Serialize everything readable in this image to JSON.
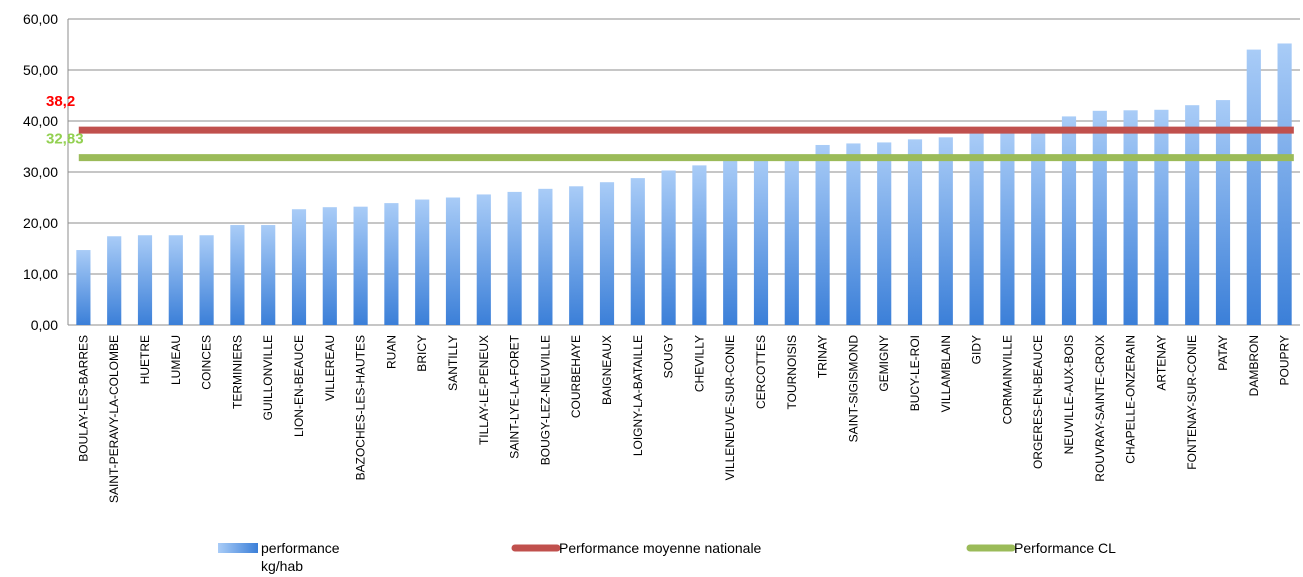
{
  "chart_data": {
    "type": "bar",
    "title": "",
    "xlabel": "",
    "ylabel": "",
    "ylim": [
      0,
      60
    ],
    "yticks": [
      "0,00",
      "10,00",
      "20,00",
      "30,00",
      "40,00",
      "50,00",
      "60,00"
    ],
    "grid": true,
    "legend_position": "bottom",
    "categories": [
      "BOULAY-LES-BARRES",
      "SAINT-PERAVY-LA-COLOMBE",
      "HUETRE",
      "LUMEAU",
      "COINCES",
      "TERMINIERS",
      "GUILLONVILLE",
      "LION-EN-BEAUCE",
      "VILLEREAU",
      "BAZOCHES-LES-HAUTES",
      "RUAN",
      "BRICY",
      "SANTILLY",
      "TILLAY-LE-PENEUX",
      "SAINT-LYE-LA-FORET",
      "BOUGY-LEZ-NEUVILLE",
      "COURBEHAYE",
      "BAIGNEAUX",
      "LOIGNY-LA-BATAILLE",
      "SOUGY",
      "CHEVILLY",
      "VILLENEUVE-SUR-CONIE",
      "CERCOTTES",
      "TOURNOISIS",
      "TRINAY",
      "SAINT-SIGISMOND",
      "GEMIGNY",
      "BUCY-LE-ROI",
      "VILLAMBLAIN",
      "GIDY",
      "CORMAINVILLE",
      "ORGERES-EN-BEAUCE",
      "NEUVILLE-AUX-BOIS",
      "ROUVRAY-SAINTE-CROIX",
      "CHAPELLE-ONZERAIN",
      "ARTENAY",
      "FONTENAY-SUR-CONIE",
      "PATAY",
      "DAMBRON",
      "POUPRY"
    ],
    "series": [
      {
        "name": "performance kg/hab",
        "kind": "bar",
        "color": "#4a8fe0",
        "values": [
          14.7,
          17.4,
          17.6,
          17.6,
          17.6,
          19.6,
          19.6,
          22.7,
          23.1,
          23.2,
          23.9,
          24.6,
          25.0,
          25.6,
          26.1,
          26.7,
          27.2,
          28.0,
          28.8,
          30.3,
          31.3,
          32.6,
          33.0,
          33.1,
          35.3,
          35.6,
          35.8,
          36.4,
          36.8,
          37.6,
          37.8,
          38.1,
          40.9,
          42.0,
          42.1,
          42.2,
          43.1,
          44.1,
          54.0,
          55.2
        ]
      },
      {
        "name": "Performance moyenne nationale",
        "kind": "line",
        "color": "#c0504d",
        "value": 38.2,
        "value_label": "38,2",
        "label_color": "#ff0000"
      },
      {
        "name": "Performance CL",
        "kind": "line",
        "color": "#9bbb59",
        "value": 32.83,
        "value_label": "32,83",
        "label_color": "#92d050"
      }
    ]
  }
}
